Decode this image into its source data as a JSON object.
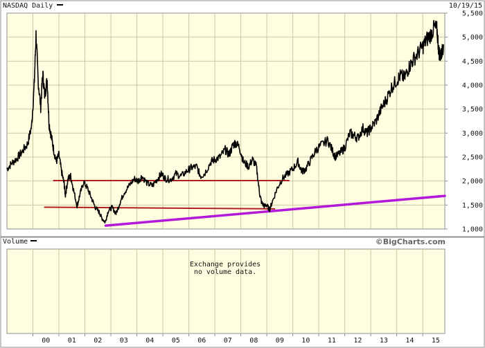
{
  "chart_data": {
    "type": "line",
    "title": "NASDAQ Daily",
    "date": "10/19/15",
    "brand": "©BigCharts.com",
    "x_tick_labels": [
      "00",
      "01",
      "02",
      "03",
      "04",
      "05",
      "06",
      "07",
      "08",
      "09",
      "10",
      "11",
      "12",
      "13",
      "14",
      "15"
    ],
    "y_tick_labels": [
      "1,000",
      "1,500",
      "2,000",
      "2,500",
      "3,000",
      "3,500",
      "4,000",
      "4,500",
      "5,000",
      "5,500"
    ],
    "ylim": [
      1000,
      5500
    ],
    "xlim": [
      1999.0,
      2015.85
    ],
    "grid": true,
    "price_series": {
      "name": "NASDAQ",
      "color": "#000000",
      "x": [
        1999.0,
        1999.2,
        1999.4,
        1999.6,
        1999.8,
        1999.95,
        2000.05,
        2000.12,
        2000.2,
        2000.3,
        2000.38,
        2000.45,
        2000.55,
        2000.62,
        2000.7,
        2000.8,
        2000.9,
        2001.0,
        2001.1,
        2001.2,
        2001.25,
        2001.35,
        2001.45,
        2001.55,
        2001.7,
        2001.8,
        2001.95,
        2002.1,
        2002.25,
        2002.4,
        2002.55,
        2002.65,
        2002.78,
        2002.9,
        2003.05,
        2003.2,
        2003.35,
        2003.5,
        2003.7,
        2003.9,
        2004.05,
        2004.2,
        2004.4,
        2004.6,
        2004.8,
        2004.95,
        2005.1,
        2005.3,
        2005.5,
        2005.7,
        2005.95,
        2006.1,
        2006.3,
        2006.45,
        2006.6,
        2006.85,
        2007.0,
        2007.2,
        2007.4,
        2007.55,
        2007.7,
        2007.8,
        2007.95,
        2008.1,
        2008.3,
        2008.45,
        2008.6,
        2008.72,
        2008.8,
        2008.9,
        2009.0,
        2009.1,
        2009.2,
        2009.4,
        2009.6,
        2009.8,
        2010.0,
        2010.2,
        2010.35,
        2010.5,
        2010.7,
        2010.9,
        2011.1,
        2011.35,
        2011.55,
        2011.65,
        2011.85,
        2012.0,
        2012.2,
        2012.35,
        2012.5,
        2012.7,
        2012.85,
        2013.0,
        2013.2,
        2013.4,
        2013.6,
        2013.8,
        2014.0,
        2014.15,
        2014.3,
        2014.45,
        2014.6,
        2014.8,
        2015.0,
        2015.15,
        2015.3,
        2015.45,
        2015.55,
        2015.62,
        2015.7,
        2015.8
      ],
      "y": [
        2250,
        2380,
        2480,
        2620,
        2780,
        3150,
        4000,
        5050,
        4100,
        3550,
        4250,
        3800,
        4100,
        3200,
        2950,
        2650,
        2400,
        2550,
        2200,
        1950,
        1700,
        2050,
        2100,
        1850,
        1480,
        1700,
        1980,
        1850,
        1650,
        1450,
        1350,
        1230,
        1140,
        1380,
        1450,
        1320,
        1550,
        1750,
        1900,
        2050,
        2000,
        2100,
        1950,
        1900,
        2050,
        2150,
        2050,
        2030,
        2150,
        2100,
        2220,
        2280,
        2300,
        2100,
        2150,
        2400,
        2450,
        2500,
        2650,
        2550,
        2750,
        2800,
        2700,
        2400,
        2300,
        2450,
        2300,
        1750,
        1550,
        1480,
        1500,
        1400,
        1550,
        1850,
        2050,
        2150,
        2250,
        2400,
        2200,
        2250,
        2450,
        2650,
        2750,
        2850,
        2600,
        2500,
        2600,
        2700,
        3000,
        2950,
        2900,
        3100,
        3000,
        3100,
        3250,
        3500,
        3700,
        3950,
        4100,
        4200,
        4150,
        4350,
        4500,
        4650,
        4800,
        4950,
        5050,
        5200,
        5150,
        4700,
        4600,
        4850
      ]
    },
    "trend_lines": [
      {
        "color": "#ae1e1e",
        "x": [
          2000.8,
          2009.85
        ],
        "y": [
          2010,
          2010
        ]
      },
      {
        "color": "#ae1e1e",
        "x": [
          2000.45,
          2009.3
        ],
        "y": [
          1455,
          1420
        ]
      },
      {
        "color": "#b319d9",
        "x": [
          2002.8,
          2015.85
        ],
        "y": [
          1070,
          1690
        ]
      }
    ],
    "volume_panel": {
      "title": "Volume",
      "note_line1": "Exchange provides",
      "note_line2": "no volume data."
    }
  }
}
